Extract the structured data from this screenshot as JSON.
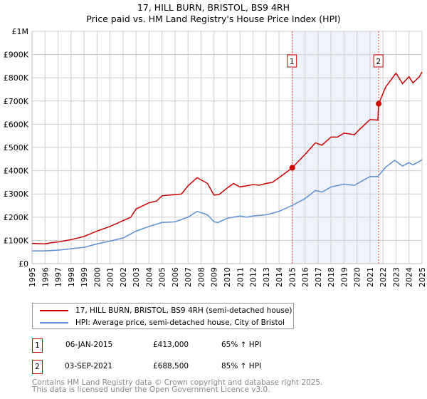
{
  "chart_data": {
    "type": "line",
    "title": "17, HILL BURN, BRISTOL, BS9 4RH",
    "subtitle": "Price paid vs. HM Land Registry's House Price Index (HPI)",
    "xlim": [
      1995,
      2025
    ],
    "ylim": [
      0,
      1000000
    ],
    "x_ticks": [
      "1995",
      "1996",
      "1997",
      "1998",
      "1999",
      "2000",
      "2001",
      "2002",
      "2003",
      "2004",
      "2005",
      "2006",
      "2007",
      "2008",
      "2009",
      "2010",
      "2011",
      "2012",
      "2013",
      "2014",
      "2015",
      "2016",
      "2017",
      "2018",
      "2019",
      "2020",
      "2021",
      "2022",
      "2023",
      "2024",
      "2025"
    ],
    "y_ticks": [
      {
        "v": 0,
        "label": "£0"
      },
      {
        "v": 100000,
        "label": "£100K"
      },
      {
        "v": 200000,
        "label": "£200K"
      },
      {
        "v": 300000,
        "label": "£300K"
      },
      {
        "v": 400000,
        "label": "£400K"
      },
      {
        "v": 500000,
        "label": "£500K"
      },
      {
        "v": 600000,
        "label": "£600K"
      },
      {
        "v": 700000,
        "label": "£700K"
      },
      {
        "v": 800000,
        "label": "£800K"
      },
      {
        "v": 900000,
        "label": "£900K"
      },
      {
        "v": 1000000,
        "label": "£1M"
      }
    ],
    "grid": true,
    "shaded_range": [
      2015.02,
      2021.67
    ],
    "series": [
      {
        "name": "17, HILL BURN, BRISTOL, BS9 4RH (semi-detached house)",
        "color": "#cc0000",
        "points": [
          [
            1995,
            87
          ],
          [
            1996,
            85
          ],
          [
            1996.5,
            90
          ],
          [
            1997,
            93
          ],
          [
            1998,
            103
          ],
          [
            1999,
            117
          ],
          [
            2000,
            140
          ],
          [
            2001,
            160
          ],
          [
            2002,
            185
          ],
          [
            2002.6,
            200
          ],
          [
            2003,
            235
          ],
          [
            2004,
            262
          ],
          [
            2004.6,
            270
          ],
          [
            2005,
            292
          ],
          [
            2006,
            297
          ],
          [
            2006.5,
            300
          ],
          [
            2007,
            335
          ],
          [
            2007.7,
            370
          ],
          [
            2008.5,
            345
          ],
          [
            2009,
            295
          ],
          [
            2009.4,
            298
          ],
          [
            2010,
            325
          ],
          [
            2010.5,
            345
          ],
          [
            2011,
            330
          ],
          [
            2012,
            340
          ],
          [
            2012.5,
            338
          ],
          [
            2013,
            345
          ],
          [
            2013.5,
            350
          ],
          [
            2014,
            370
          ],
          [
            2014.6,
            395
          ],
          [
            2015.02,
            413
          ],
          [
            2016,
            470
          ],
          [
            2016.8,
            520
          ],
          [
            2017.3,
            510
          ],
          [
            2018,
            545
          ],
          [
            2018.5,
            545
          ],
          [
            2019,
            562
          ],
          [
            2019.8,
            555
          ],
          [
            2020.2,
            578
          ],
          [
            2021,
            620
          ],
          [
            2021.6,
            618
          ],
          [
            2021.67,
            688.5
          ],
          [
            2022.2,
            760
          ],
          [
            2022.6,
            790
          ],
          [
            2023,
            820
          ],
          [
            2023.5,
            775
          ],
          [
            2024,
            805
          ],
          [
            2024.3,
            778
          ],
          [
            2024.8,
            805
          ],
          [
            2025,
            825
          ]
        ]
      },
      {
        "name": "HPI: Average price, semi-detached house, City of Bristol",
        "color": "#5b8fd6",
        "points": [
          [
            1995,
            55
          ],
          [
            1996,
            55
          ],
          [
            1997,
            58
          ],
          [
            1998,
            64
          ],
          [
            1999,
            70
          ],
          [
            2000,
            85
          ],
          [
            2001,
            97
          ],
          [
            2002,
            110
          ],
          [
            2003,
            140
          ],
          [
            2004,
            160
          ],
          [
            2005,
            177
          ],
          [
            2006,
            180
          ],
          [
            2007,
            200
          ],
          [
            2007.7,
            225
          ],
          [
            2008.5,
            210
          ],
          [
            2009,
            180
          ],
          [
            2009.3,
            177
          ],
          [
            2010,
            195
          ],
          [
            2011,
            205
          ],
          [
            2011.5,
            200
          ],
          [
            2012,
            205
          ],
          [
            2013,
            210
          ],
          [
            2014,
            225
          ],
          [
            2015,
            250
          ],
          [
            2016,
            280
          ],
          [
            2016.8,
            315
          ],
          [
            2017.3,
            308
          ],
          [
            2018,
            330
          ],
          [
            2019,
            342
          ],
          [
            2019.8,
            337
          ],
          [
            2020.2,
            350
          ],
          [
            2021,
            375
          ],
          [
            2021.6,
            375
          ],
          [
            2022.2,
            415
          ],
          [
            2022.9,
            445
          ],
          [
            2023.5,
            420
          ],
          [
            2024,
            435
          ],
          [
            2024.3,
            425
          ],
          [
            2024.8,
            440
          ],
          [
            2025,
            448
          ]
        ]
      }
    ],
    "annotations": [
      {
        "label": "1",
        "x": 2015.02,
        "y": 413000
      },
      {
        "label": "2",
        "x": 2021.67,
        "y": 688500
      }
    ]
  },
  "transactions": [
    {
      "num": "1",
      "date": "06-JAN-2015",
      "price": "£413,000",
      "hpi": "65% ↑ HPI"
    },
    {
      "num": "2",
      "date": "03-SEP-2021",
      "price": "£688,500",
      "hpi": "85% ↑ HPI"
    }
  ],
  "footer": [
    "Contains HM Land Registry data © Crown copyright and database right 2025.",
    "This data is licensed under the Open Government Licence v3.0."
  ]
}
